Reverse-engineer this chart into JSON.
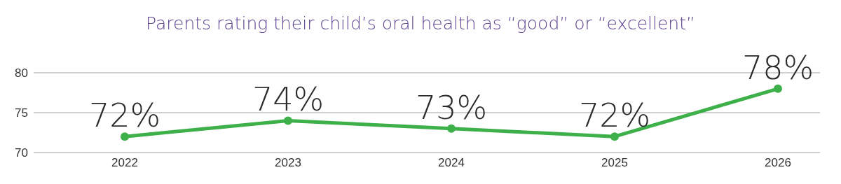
{
  "chart_data": {
    "type": "line",
    "title": "Parents rating their child’s oral health as “good” or “excellent”",
    "categories": [
      "2022",
      "2023",
      "2024",
      "2025",
      "2026"
    ],
    "series": [
      {
        "color": "#3db04a",
        "values": [
          72,
          74,
          73,
          72,
          78
        ],
        "value_labels": [
          "72%",
          "74%",
          "73%",
          "72%",
          "78%"
        ]
      }
    ],
    "ylim": [
      70,
      80
    ],
    "yticks": [
      70,
      75,
      80
    ],
    "grid": "y",
    "marker": "circle",
    "line_style": "solid"
  }
}
